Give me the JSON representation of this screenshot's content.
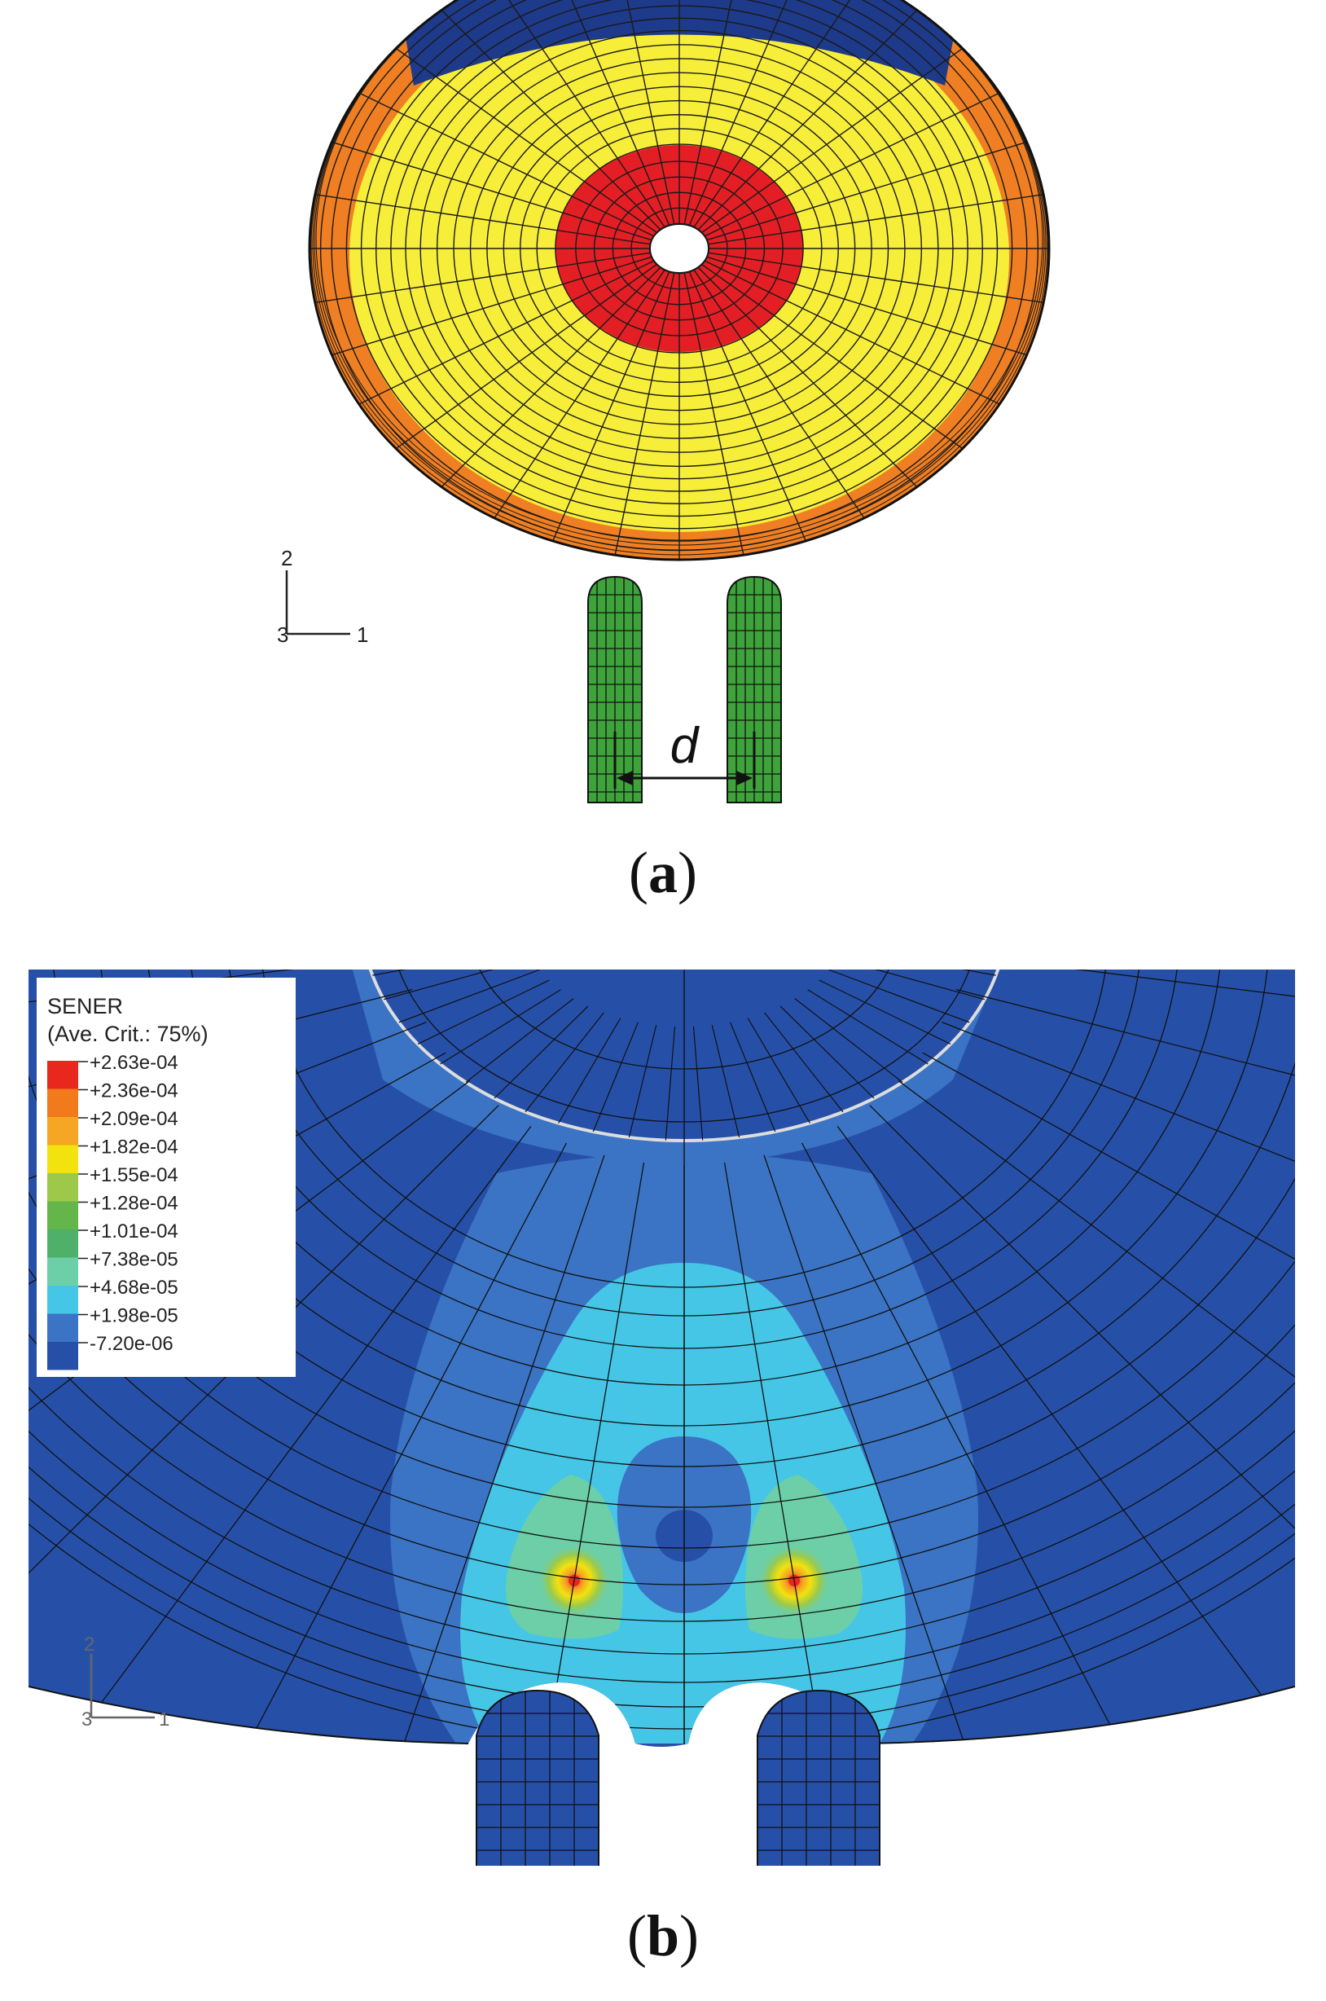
{
  "panel_a": {
    "caption_letter": "a",
    "dimension_label": "d",
    "axes": {
      "vertical": "2",
      "origin": "3",
      "horizontal": "1"
    }
  },
  "panel_b": {
    "caption_letter": "b",
    "axes": {
      "vertical": "2",
      "origin": "3",
      "horizontal": "1"
    },
    "legend": {
      "title": "SENER",
      "subtitle": "(Ave. Crit.: 75%)",
      "entries": [
        {
          "label": "+2.63e-04",
          "color": "#e8281e"
        },
        {
          "label": "+2.36e-04",
          "color": "#f07a1c"
        },
        {
          "label": "+2.09e-04",
          "color": "#f5a623"
        },
        {
          "label": "+1.82e-04",
          "color": "#f2e20e"
        },
        {
          "label": "+1.55e-04",
          "color": "#9cc94a"
        },
        {
          "label": "+1.28e-04",
          "color": "#64b54a"
        },
        {
          "label": "+1.01e-04",
          "color": "#4fb06a"
        },
        {
          "label": "+7.38e-05",
          "color": "#6ccfa8"
        },
        {
          "label": "+4.68e-05",
          "color": "#46c6e6"
        },
        {
          "label": "+1.98e-05",
          "color": "#3b74c4"
        },
        {
          "label": "-7.20e-06",
          "color": "#2650a8"
        }
      ]
    }
  },
  "colors": {
    "disk_red": "#e31e24",
    "disk_yellow": "#f7ee3a",
    "disk_orange": "#ef7f22",
    "disk_navy": "#1e3a8a",
    "support_green": "#3ea33b",
    "field_blue": "#2650a8"
  }
}
